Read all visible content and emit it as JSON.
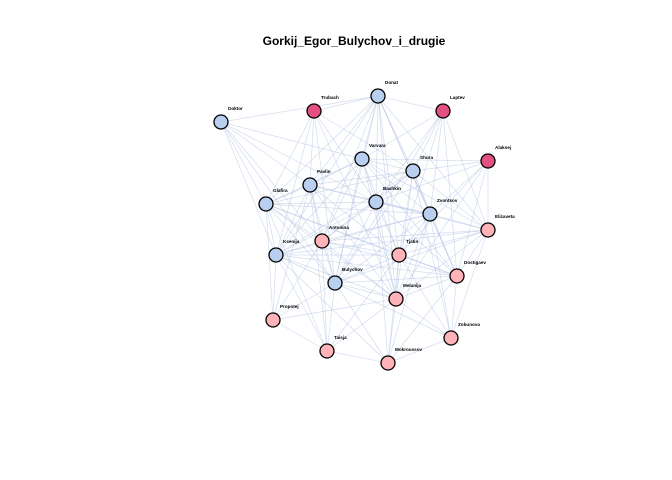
{
  "title": "Gorkij_Egor_Bulychov_i_drugie",
  "colors": {
    "group_a": "#b9cff0",
    "group_b": "#ffb3b8",
    "group_c": "#e4507f",
    "edge": "#aebfe2",
    "outline": "#000000"
  },
  "chart_data": {
    "type": "network",
    "title": "Gorkij_Egor_Bulychov_i_drugie",
    "nodes": [
      {
        "id": "Donat",
        "group": "group_a"
      },
      {
        "id": "Trubach",
        "group": "group_c"
      },
      {
        "id": "Laptev",
        "group": "group_c"
      },
      {
        "id": "Doktor",
        "group": "group_a"
      },
      {
        "id": "Alaksej",
        "group": "group_c"
      },
      {
        "id": "Varvara",
        "group": "group_a"
      },
      {
        "id": "Shura",
        "group": "group_a"
      },
      {
        "id": "Pavlin",
        "group": "group_a"
      },
      {
        "id": "Bashkin",
        "group": "group_a"
      },
      {
        "id": "Glafira",
        "group": "group_a"
      },
      {
        "id": "Zvontsov",
        "group": "group_a"
      },
      {
        "id": "Elizaveta",
        "group": "group_b"
      },
      {
        "id": "Antonina",
        "group": "group_b"
      },
      {
        "id": "Ksenija",
        "group": "group_a"
      },
      {
        "id": "Tjatin",
        "group": "group_b"
      },
      {
        "id": "Dostigaev",
        "group": "group_b"
      },
      {
        "id": "Bulychov",
        "group": "group_a"
      },
      {
        "id": "Melanija",
        "group": "group_b"
      },
      {
        "id": "Propotej",
        "group": "group_b"
      },
      {
        "id": "Zobunova",
        "group": "group_b"
      },
      {
        "id": "Taisja",
        "group": "group_b"
      },
      {
        "id": "Mokroussov",
        "group": "group_b"
      }
    ],
    "edges": [
      [
        "Donat",
        "Varvara"
      ],
      [
        "Donat",
        "Shura"
      ],
      [
        "Donat",
        "Pavlin"
      ],
      [
        "Donat",
        "Bashkin"
      ],
      [
        "Donat",
        "Bulychov"
      ],
      [
        "Donat",
        "Zvontsov"
      ],
      [
        "Donat",
        "Glafira"
      ],
      [
        "Donat",
        "Ksenija"
      ],
      [
        "Donat",
        "Antonina"
      ],
      [
        "Donat",
        "Tjatin"
      ],
      [
        "Donat",
        "Melanija"
      ],
      [
        "Donat",
        "Dostigaev"
      ],
      [
        "Donat",
        "Trubach"
      ],
      [
        "Donat",
        "Laptev"
      ],
      [
        "Donat",
        "Elizaveta"
      ],
      [
        "Trubach",
        "Bulychov"
      ],
      [
        "Trubach",
        "Pavlin"
      ],
      [
        "Trubach",
        "Shura"
      ],
      [
        "Trubach",
        "Bashkin"
      ],
      [
        "Trubach",
        "Ksenija"
      ],
      [
        "Trubach",
        "Glafira"
      ],
      [
        "Trubach",
        "Melanija"
      ],
      [
        "Laptev",
        "Shura"
      ],
      [
        "Laptev",
        "Bulychov"
      ],
      [
        "Laptev",
        "Zvontsov"
      ],
      [
        "Laptev",
        "Bashkin"
      ],
      [
        "Laptev",
        "Varvara"
      ],
      [
        "Laptev",
        "Tjatin"
      ],
      [
        "Laptev",
        "Elizaveta"
      ],
      [
        "Laptev",
        "Dostigaev"
      ],
      [
        "Doktor",
        "Glafira"
      ],
      [
        "Doktor",
        "Ksenija"
      ],
      [
        "Doktor",
        "Bulychov"
      ],
      [
        "Doktor",
        "Pavlin"
      ],
      [
        "Doktor",
        "Donat"
      ],
      [
        "Doktor",
        "Varvara"
      ],
      [
        "Doktor",
        "Bashkin"
      ],
      [
        "Doktor",
        "Antonina"
      ],
      [
        "Alaksej",
        "Shura"
      ],
      [
        "Alaksej",
        "Zvontsov"
      ],
      [
        "Alaksej",
        "Elizaveta"
      ],
      [
        "Alaksej",
        "Dostigaev"
      ],
      [
        "Alaksej",
        "Bashkin"
      ],
      [
        "Alaksej",
        "Melanija"
      ],
      [
        "Alaksej",
        "Tjatin"
      ],
      [
        "Alaksej",
        "Varvara"
      ],
      [
        "Varvara",
        "Shura"
      ],
      [
        "Varvara",
        "Pavlin"
      ],
      [
        "Varvara",
        "Bashkin"
      ],
      [
        "Varvara",
        "Glafira"
      ],
      [
        "Varvara",
        "Zvontsov"
      ],
      [
        "Varvara",
        "Ksenija"
      ],
      [
        "Varvara",
        "Bulychov"
      ],
      [
        "Varvara",
        "Antonina"
      ],
      [
        "Varvara",
        "Tjatin"
      ],
      [
        "Varvara",
        "Melanija"
      ],
      [
        "Varvara",
        "Dostigaev"
      ],
      [
        "Varvara",
        "Elizaveta"
      ],
      [
        "Shura",
        "Pavlin"
      ],
      [
        "Shura",
        "Bashkin"
      ],
      [
        "Shura",
        "Zvontsov"
      ],
      [
        "Shura",
        "Glafira"
      ],
      [
        "Shura",
        "Ksenija"
      ],
      [
        "Shura",
        "Bulychov"
      ],
      [
        "Shura",
        "Antonina"
      ],
      [
        "Shura",
        "Tjatin"
      ],
      [
        "Shura",
        "Melanija"
      ],
      [
        "Shura",
        "Elizaveta"
      ],
      [
        "Shura",
        "Dostigaev"
      ],
      [
        "Shura",
        "Zobunova"
      ],
      [
        "Pavlin",
        "Bashkin"
      ],
      [
        "Pavlin",
        "Glafira"
      ],
      [
        "Pavlin",
        "Zvontsov"
      ],
      [
        "Pavlin",
        "Ksenija"
      ],
      [
        "Pavlin",
        "Bulychov"
      ],
      [
        "Pavlin",
        "Antonina"
      ],
      [
        "Pavlin",
        "Tjatin"
      ],
      [
        "Pavlin",
        "Melanija"
      ],
      [
        "Pavlin",
        "Propotej"
      ],
      [
        "Pavlin",
        "Taisja"
      ],
      [
        "Bashkin",
        "Glafira"
      ],
      [
        "Bashkin",
        "Zvontsov"
      ],
      [
        "Bashkin",
        "Ksenija"
      ],
      [
        "Bashkin",
        "Bulychov"
      ],
      [
        "Bashkin",
        "Antonina"
      ],
      [
        "Bashkin",
        "Tjatin"
      ],
      [
        "Bashkin",
        "Melanija"
      ],
      [
        "Bashkin",
        "Dostigaev"
      ],
      [
        "Bashkin",
        "Elizaveta"
      ],
      [
        "Bashkin",
        "Mokroussov"
      ],
      [
        "Glafira",
        "Zvontsov"
      ],
      [
        "Glafira",
        "Ksenija"
      ],
      [
        "Glafira",
        "Bulychov"
      ],
      [
        "Glafira",
        "Antonina"
      ],
      [
        "Glafira",
        "Tjatin"
      ],
      [
        "Glafira",
        "Melanija"
      ],
      [
        "Glafira",
        "Propotej"
      ],
      [
        "Glafira",
        "Taisja"
      ],
      [
        "Glafira",
        "Dostigaev"
      ],
      [
        "Zvontsov",
        "Ksenija"
      ],
      [
        "Zvontsov",
        "Bulychov"
      ],
      [
        "Zvontsov",
        "Antonina"
      ],
      [
        "Zvontsov",
        "Tjatin"
      ],
      [
        "Zvontsov",
        "Melanija"
      ],
      [
        "Zvontsov",
        "Dostigaev"
      ],
      [
        "Zvontsov",
        "Elizaveta"
      ],
      [
        "Zvontsov",
        "Zobunova"
      ],
      [
        "Zvontsov",
        "Mokroussov"
      ],
      [
        "Elizaveta",
        "Dostigaev"
      ],
      [
        "Elizaveta",
        "Bulychov"
      ],
      [
        "Elizaveta",
        "Melanija"
      ],
      [
        "Elizaveta",
        "Tjatin"
      ],
      [
        "Elizaveta",
        "Ksenija"
      ],
      [
        "Elizaveta",
        "Zobunova"
      ],
      [
        "Elizaveta",
        "Antonina"
      ],
      [
        "Antonina",
        "Ksenija"
      ],
      [
        "Antonina",
        "Bulychov"
      ],
      [
        "Antonina",
        "Tjatin"
      ],
      [
        "Antonina",
        "Melanija"
      ],
      [
        "Antonina",
        "Dostigaev"
      ],
      [
        "Antonina",
        "Taisja"
      ],
      [
        "Antonina",
        "Propotej"
      ],
      [
        "Ksenija",
        "Bulychov"
      ],
      [
        "Ksenija",
        "Tjatin"
      ],
      [
        "Ksenija",
        "Melanija"
      ],
      [
        "Ksenija",
        "Propotej"
      ],
      [
        "Ksenija",
        "Taisja"
      ],
      [
        "Ksenija",
        "Dostigaev"
      ],
      [
        "Ksenija",
        "Mokroussov"
      ],
      [
        "Tjatin",
        "Bulychov"
      ],
      [
        "Tjatin",
        "Melanija"
      ],
      [
        "Tjatin",
        "Dostigaev"
      ],
      [
        "Tjatin",
        "Zobunova"
      ],
      [
        "Tjatin",
        "Mokroussov"
      ],
      [
        "Tjatin",
        "Taisja"
      ],
      [
        "Dostigaev",
        "Bulychov"
      ],
      [
        "Dostigaev",
        "Melanija"
      ],
      [
        "Dostigaev",
        "Zobunova"
      ],
      [
        "Dostigaev",
        "Mokroussov"
      ],
      [
        "Bulychov",
        "Melanija"
      ],
      [
        "Bulychov",
        "Propotej"
      ],
      [
        "Bulychov",
        "Taisja"
      ],
      [
        "Bulychov",
        "Mokroussov"
      ],
      [
        "Bulychov",
        "Zobunova"
      ],
      [
        "Melanija",
        "Zobunova"
      ],
      [
        "Melanija",
        "Mokroussov"
      ],
      [
        "Melanija",
        "Taisja"
      ],
      [
        "Melanija",
        "Propotej"
      ],
      [
        "Propotej",
        "Taisja"
      ],
      [
        "Taisja",
        "Mokroussov"
      ],
      [
        "Zobunova",
        "Mokroussov"
      ]
    ]
  }
}
